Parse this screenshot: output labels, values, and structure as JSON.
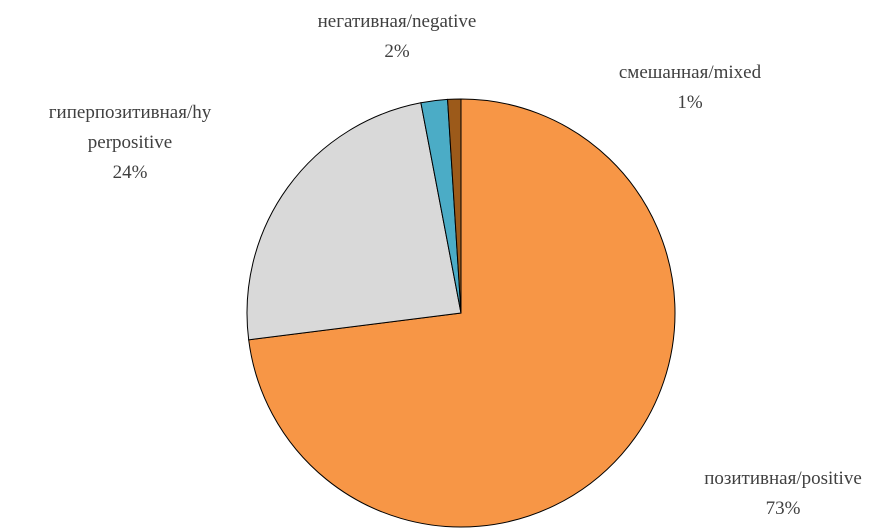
{
  "chart_data": {
    "type": "pie",
    "categories": [
      "позитивная/positive",
      "гиперпозитивная/hyperpositive",
      "негативная/negative",
      "смешанная/mixed"
    ],
    "values": [
      73,
      24,
      2,
      1
    ],
    "value_labels": [
      "73%",
      "24%",
      "2%",
      "1%"
    ],
    "colors": [
      "#f79646",
      "#d9d9d9",
      "#4bacc6",
      "#9c5a1a"
    ]
  }
}
